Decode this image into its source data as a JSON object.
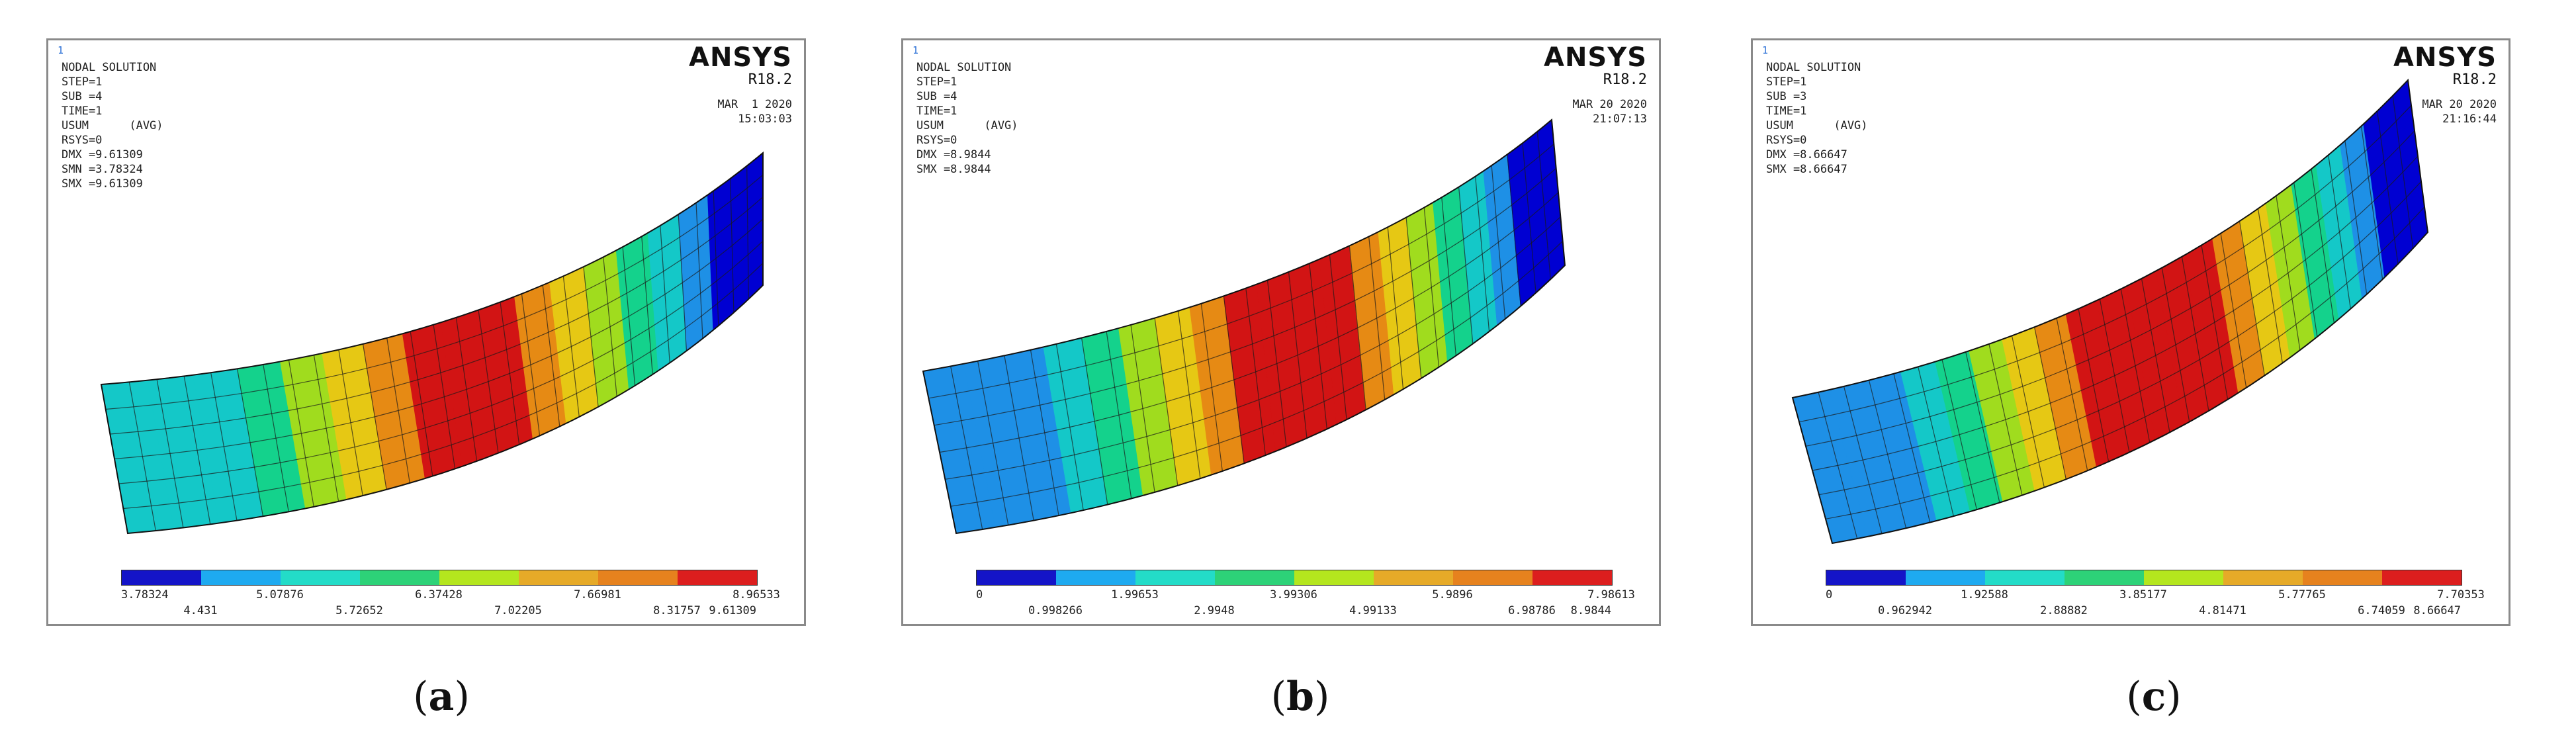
{
  "colors": [
    "#0000d2",
    "#1e90e6",
    "#14c8c8",
    "#14d28c",
    "#a0dc1e",
    "#e6c814",
    "#e68a14",
    "#d21414"
  ],
  "legend_colors": [
    "#1414c8",
    "#1eaaf0",
    "#23dcc8",
    "#2dd278",
    "#b4e61e",
    "#e6aa28",
    "#e6821e",
    "#dc1e1e"
  ],
  "panels": [
    {
      "mark": "1",
      "info": [
        "NODAL SOLUTION",
        "STEP=1",
        "SUB =4",
        "TIME=1",
        "USUM      (AVG)",
        "RSYS=0",
        "DMX =9.61309",
        "SMN =3.78324",
        "SMX =9.61309"
      ],
      "brand": "ANSYS",
      "version": "R18.2",
      "date": "MAR  1 2020",
      "time": "15:03:03",
      "legend_top": [
        "3.78324",
        "5.07876",
        "6.37428",
        "7.66981",
        "8.96533"
      ],
      "legend_bottom": [
        "4.431",
        "5.72652",
        "7.02205",
        "8.31757",
        "9.61309"
      ],
      "caption_letter": "a",
      "pattern": "a"
    },
    {
      "mark": "1",
      "info": [
        "NODAL SOLUTION",
        "STEP=1",
        "SUB =4",
        "TIME=1",
        "USUM      (AVG)",
        "RSYS=0",
        "DMX =8.9844",
        "SMX =8.9844"
      ],
      "brand": "ANSYS",
      "version": "R18.2",
      "date": "MAR 20 2020",
      "time": "21:07:13",
      "legend_top": [
        "0",
        "1.99653",
        "3.99306",
        "5.9896",
        "7.98613"
      ],
      "legend_bottom": [
        "0.998266",
        "2.9948",
        "4.99133",
        "6.98786",
        "8.9844"
      ],
      "caption_letter": "b",
      "pattern": "b"
    },
    {
      "mark": "1",
      "info": [
        "NODAL SOLUTION",
        "STEP=1",
        "SUB =3",
        "TIME=1",
        "USUM      (AVG)",
        "RSYS=0",
        "DMX =8.66647",
        "SMX =8.66647"
      ],
      "brand": "ANSYS",
      "version": "R18.2",
      "date": "MAR 20 2020",
      "time": "21:16:44",
      "legend_top": [
        "0",
        "1.92588",
        "3.85177",
        "5.77765",
        "7.70353"
      ],
      "legend_bottom": [
        "0.962942",
        "2.88882",
        "4.81471",
        "6.74059",
        "8.66647"
      ],
      "caption_letter": "c",
      "pattern": "c"
    }
  ]
}
